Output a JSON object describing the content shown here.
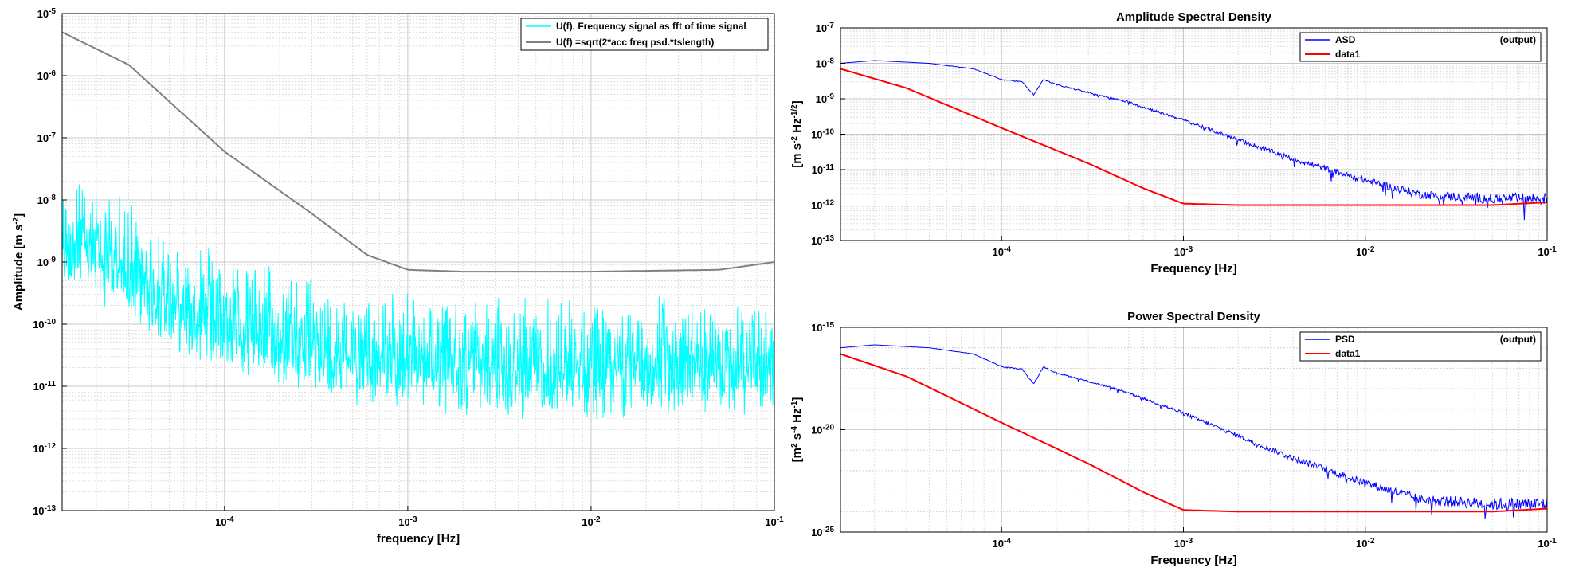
{
  "chart_data": [
    {
      "type": "line",
      "title": "",
      "xlabel": "frequency [Hz]",
      "ylabel": "Amplitude [m s^-2]",
      "xscale": "log",
      "yscale": "log",
      "xlim": [
        1.3e-05,
        0.1
      ],
      "ylim": [
        1e-13,
        1e-05
      ],
      "grid": true,
      "legend_location": "top-right",
      "x_ticks": [
        {
          "value": 0.0001,
          "label": "10",
          "exp": "-4"
        },
        {
          "value": 0.001,
          "label": "10",
          "exp": "-3"
        },
        {
          "value": 0.01,
          "label": "10",
          "exp": "-2"
        },
        {
          "value": 0.1,
          "label": "10",
          "exp": "-1"
        }
      ],
      "y_ticks": [
        {
          "value": 1e-05,
          "label": "10",
          "exp": "-5"
        },
        {
          "value": 1e-06,
          "label": "10",
          "exp": "-6"
        },
        {
          "value": 1e-07,
          "label": "10",
          "exp": "-7"
        },
        {
          "value": 1e-08,
          "label": "10",
          "exp": "-8"
        },
        {
          "value": 1e-09,
          "label": "10",
          "exp": "-9"
        },
        {
          "value": 1e-10,
          "label": "10",
          "exp": "-10"
        },
        {
          "value": 1e-11,
          "label": "10",
          "exp": "-11"
        },
        {
          "value": 1e-12,
          "label": "10",
          "exp": "-12"
        },
        {
          "value": 1e-13,
          "label": "10",
          "exp": "-13"
        }
      ],
      "series": [
        {
          "name": "U(f). Frequency signal as fft of time signal",
          "color": "#00ffff",
          "style": "noisy",
          "x": [
            1.3e-05,
            2e-05,
            3e-05,
            5e-05,
            0.0001,
            0.0002,
            0.0005,
            0.001,
            0.002,
            0.005,
            0.01,
            0.02,
            0.05,
            0.1
          ],
          "y": [
            2e-08,
            1.5e-08,
            7e-09,
            2.5e-09,
            1e-09,
            6e-10,
            3.5e-10,
            2.5e-10,
            2e-10,
            2e-10,
            2e-10,
            2e-10,
            2e-10,
            2.5e-10
          ]
        },
        {
          "name": "U(f) =sqrt(2*acc freq psd.*tslength)",
          "color": "#808080",
          "style": "smooth",
          "x": [
            1.3e-05,
            3e-05,
            0.0001,
            0.0003,
            0.0006,
            0.001,
            0.002,
            0.01,
            0.05,
            0.1
          ],
          "y": [
            5e-06,
            1.5e-06,
            6e-08,
            6e-09,
            1.3e-09,
            7.5e-10,
            7e-10,
            7e-10,
            7.5e-10,
            1e-09
          ]
        }
      ]
    },
    {
      "type": "line",
      "title": "Amplitude Spectral Density",
      "xlabel": "Frequency  [Hz]",
      "ylabel": "[m s^-2 Hz^-1/2]",
      "xscale": "log",
      "yscale": "log",
      "xlim": [
        1.3e-05,
        0.1
      ],
      "ylim": [
        1e-13,
        1e-07
      ],
      "grid": true,
      "legend_location": "top-right",
      "legend_note": "(output)",
      "x_ticks": [
        {
          "value": 0.0001,
          "label": "10",
          "exp": "-4"
        },
        {
          "value": 0.001,
          "label": "10",
          "exp": "-3"
        },
        {
          "value": 0.01,
          "label": "10",
          "exp": "-2"
        },
        {
          "value": 0.1,
          "label": "10",
          "exp": "-1"
        }
      ],
      "y_ticks": [
        {
          "value": 1e-07,
          "label": "10",
          "exp": "-7"
        },
        {
          "value": 1e-08,
          "label": "10",
          "exp": "-8"
        },
        {
          "value": 1e-09,
          "label": "10",
          "exp": "-9"
        },
        {
          "value": 1e-10,
          "label": "10",
          "exp": "-10"
        },
        {
          "value": 1e-11,
          "label": "10",
          "exp": "-11"
        },
        {
          "value": 1e-12,
          "label": "10",
          "exp": "-12"
        },
        {
          "value": 1e-13,
          "label": "10",
          "exp": "-13"
        }
      ],
      "series": [
        {
          "name": "ASD",
          "color": "#0000ff",
          "style": "jitter",
          "x": [
            1.3e-05,
            2e-05,
            4e-05,
            7e-05,
            0.0001,
            0.00013,
            0.00015,
            0.00017,
            0.0002,
            0.0003,
            0.0005,
            0.001,
            0.002,
            0.004,
            0.01,
            0.02,
            0.05,
            0.1
          ],
          "y": [
            1e-08,
            1.2e-08,
            1e-08,
            7e-09,
            3.5e-09,
            3e-09,
            1.3e-09,
            3.5e-09,
            2.5e-09,
            1.5e-09,
            8e-10,
            2.5e-10,
            7e-11,
            2e-11,
            5e-12,
            2e-12,
            1.5e-12,
            1.5e-12
          ]
        },
        {
          "name": "data1",
          "color": "#ff0000",
          "style": "smooth",
          "x": [
            1.3e-05,
            3e-05,
            0.0001,
            0.0003,
            0.0006,
            0.001,
            0.002,
            0.01,
            0.05,
            0.1
          ],
          "y": [
            7e-09,
            2e-09,
            1.5e-10,
            1.5e-11,
            3e-12,
            1.1e-12,
            1e-12,
            1e-12,
            1e-12,
            1.2e-12
          ]
        }
      ]
    },
    {
      "type": "line",
      "title": "Power Spectral Density",
      "xlabel": "Frequency  [Hz]",
      "ylabel": "[m^2 s^-4 Hz^-1]",
      "xscale": "log",
      "yscale": "log",
      "xlim": [
        1.3e-05,
        0.1
      ],
      "ylim": [
        1e-25,
        1e-15
      ],
      "grid": true,
      "legend_location": "top-right",
      "legend_note": "(output)",
      "x_ticks": [
        {
          "value": 0.0001,
          "label": "10",
          "exp": "-4"
        },
        {
          "value": 0.001,
          "label": "10",
          "exp": "-3"
        },
        {
          "value": 0.01,
          "label": "10",
          "exp": "-2"
        },
        {
          "value": 0.1,
          "label": "10",
          "exp": "-1"
        }
      ],
      "y_ticks": [
        {
          "value": 1e-15,
          "label": "10",
          "exp": "-15"
        },
        {
          "value": 1e-20,
          "label": "10",
          "exp": "-20"
        },
        {
          "value": 1e-25,
          "label": "10",
          "exp": "-25"
        }
      ],
      "series": [
        {
          "name": "PSD",
          "color": "#0000ff",
          "style": "jitter",
          "x": [
            1.3e-05,
            2e-05,
            4e-05,
            7e-05,
            0.0001,
            0.00013,
            0.00015,
            0.00017,
            0.0002,
            0.0003,
            0.0005,
            0.001,
            0.002,
            0.004,
            0.01,
            0.02,
            0.05,
            0.1
          ],
          "y": [
            1e-16,
            1.4e-16,
            1e-16,
            5e-17,
            1.2e-17,
            9e-18,
            1.7e-18,
            1.2e-17,
            6e-18,
            2.3e-18,
            6.4e-19,
            6.3e-20,
            4.9e-21,
            4e-22,
            2.5e-23,
            4e-24,
            2.3e-24,
            2.3e-24
          ]
        },
        {
          "name": "data1",
          "color": "#ff0000",
          "style": "smooth",
          "x": [
            1.3e-05,
            3e-05,
            0.0001,
            0.0003,
            0.0006,
            0.001,
            0.002,
            0.01,
            0.05,
            0.1
          ],
          "y": [
            5e-17,
            4e-18,
            2.2e-20,
            2.2e-22,
            9e-24,
            1.2e-24,
            1e-24,
            1e-24,
            1e-24,
            1.4e-24
          ]
        }
      ]
    }
  ]
}
